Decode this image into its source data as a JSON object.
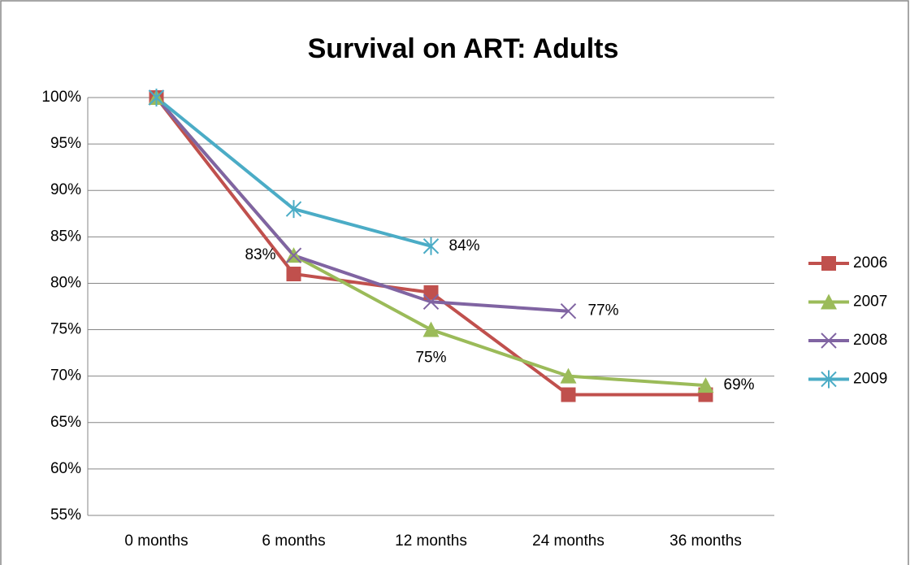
{
  "chart_data": {
    "type": "line",
    "title": "Survival on ART: Adults",
    "categories": [
      "0 months",
      "6 months",
      "12 months",
      "24 months",
      "36 months"
    ],
    "series": [
      {
        "name": "2006",
        "color": "#c0504d",
        "marker": "square",
        "values": [
          100,
          81,
          79,
          68,
          68
        ]
      },
      {
        "name": "2007",
        "color": "#9bbb59",
        "marker": "triangle",
        "values": [
          100,
          83,
          75,
          70,
          69
        ],
        "value_labels": [
          null,
          null,
          "75%",
          null,
          "69%"
        ]
      },
      {
        "name": "2008",
        "color": "#8064a2",
        "marker": "x",
        "values": [
          100,
          83,
          78,
          77,
          null
        ],
        "value_labels": [
          null,
          "83%",
          null,
          "77%",
          null
        ]
      },
      {
        "name": "2009",
        "color": "#4bacc6",
        "marker": "asterisk",
        "values": [
          100,
          88,
          84,
          null,
          null
        ],
        "value_labels": [
          null,
          null,
          "84%",
          null,
          null
        ]
      }
    ],
    "ylim": [
      55,
      100
    ],
    "yticks": [
      {
        "value": 55,
        "label": "55%"
      },
      {
        "value": 60,
        "label": "60%"
      },
      {
        "value": 65,
        "label": "65%"
      },
      {
        "value": 70,
        "label": "70%"
      },
      {
        "value": 75,
        "label": "75%"
      },
      {
        "value": 80,
        "label": "80%"
      },
      {
        "value": 85,
        "label": "85%"
      },
      {
        "value": 90,
        "label": "90%"
      },
      {
        "value": 95,
        "label": "95%"
      },
      {
        "value": 100,
        "label": "100%"
      }
    ],
    "grid": true,
    "legend": "right"
  }
}
